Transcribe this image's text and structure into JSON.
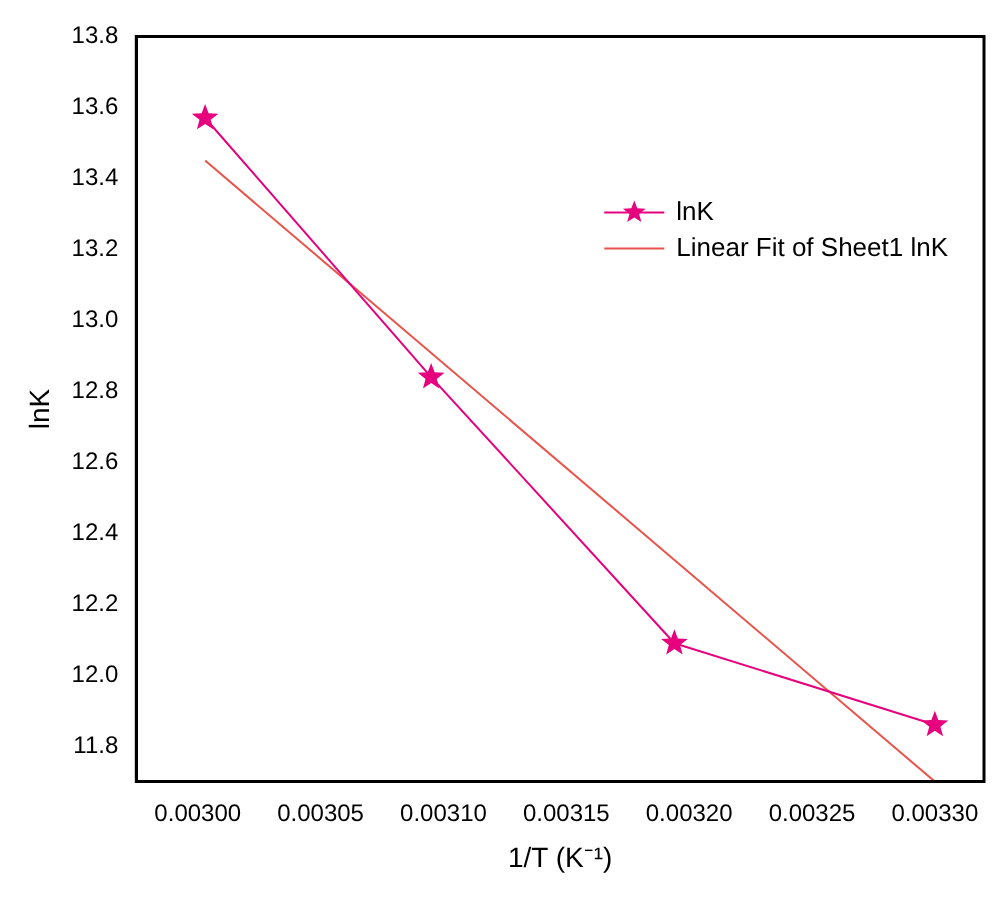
{
  "chart_data": {
    "type": "line",
    "xlabel": "1/T (K⁻¹)",
    "ylabel": "lnK",
    "x": [
      0.003003,
      0.003095,
      0.003194,
      0.0033
    ],
    "series": [
      {
        "name": "lnK",
        "color": "#e6007e",
        "values": [
          13.57,
          12.84,
          12.09,
          11.86
        ],
        "marker": "star"
      },
      {
        "name": "Linear Fit of Sheet1 lnK",
        "color": "#e8534a",
        "type": "line",
        "x": [
          0.003003,
          0.0033
        ],
        "values": [
          13.45,
          11.7
        ],
        "marker": "none"
      }
    ],
    "xlim": [
      0.002975,
      0.00332
    ],
    "xticks": [
      {
        "value": 0.003,
        "label": "0.00300"
      },
      {
        "value": 0.00305,
        "label": "0.00305"
      },
      {
        "value": 0.0031,
        "label": "0.00310"
      },
      {
        "value": 0.00315,
        "label": "0.00315"
      },
      {
        "value": 0.0032,
        "label": "0.00320"
      },
      {
        "value": 0.00325,
        "label": "0.00325"
      },
      {
        "value": 0.0033,
        "label": "0.00330"
      }
    ],
    "ylim": [
      11.7,
      13.8
    ],
    "yticks": [
      11.8,
      {
        "value": 12.0,
        "label": "12.0"
      },
      12.2,
      12.4,
      12.6,
      12.8,
      {
        "value": 13.0,
        "label": "13.0"
      },
      13.2,
      13.4,
      13.6,
      13.8
    ],
    "grid": false,
    "legend": "top right"
  }
}
